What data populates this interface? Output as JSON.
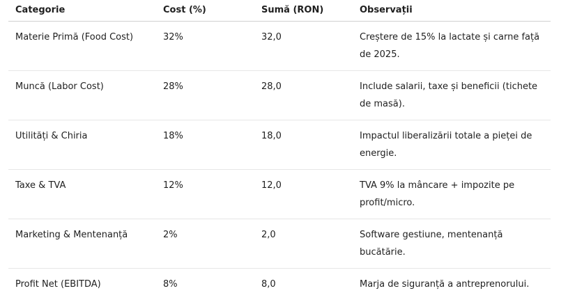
{
  "table": {
    "header": [
      "Categorie",
      "Cost (%)",
      "Sumă (RON)",
      "Observații"
    ],
    "rows": [
      [
        "Materie Primă (Food Cost)",
        "32%",
        "32,0",
        "Creștere de 15% la lactate și carne față de 2025."
      ],
      [
        "Muncă (Labor Cost)",
        "28%",
        "28,0",
        "Include salarii, taxe și beneficii (tichete de masă)."
      ],
      [
        "Utilități & Chiria",
        "18%",
        "18,0",
        "Impactul liberalizării totale a pieței de energie."
      ],
      [
        "Taxe & TVA",
        "12%",
        "12,0",
        "TVA 9% la mâncare + impozite pe profit/micro."
      ],
      [
        "Marketing & Mentenanță",
        "2%",
        "2,0",
        "Software gestiune, mentenanță bucătărie."
      ],
      [
        "Profit Net (EBITDA)",
        "8%",
        "8,0",
        "Marja de siguranță a antreprenorului."
      ]
    ]
  }
}
